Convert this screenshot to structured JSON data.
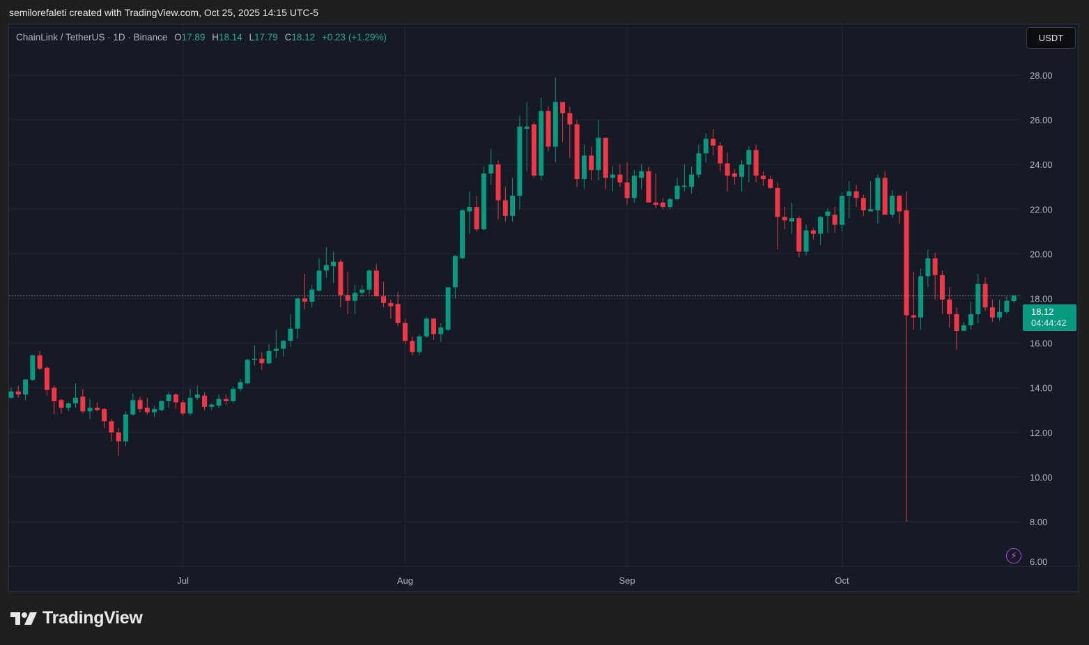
{
  "caption": "semilorefaleti created with TradingView.com, Oct 25, 2025 14:15 UTC-5",
  "legend": {
    "symbol": "ChainLink / TetherUS · 1D · Binance",
    "open_label": "O",
    "open": "17.89",
    "high_label": "H",
    "high": "18.14",
    "low_label": "L",
    "low": "17.79",
    "close_label": "C",
    "close": "18.12",
    "change": "+0.23 (+1.29%)"
  },
  "currency_button": "USDT",
  "last_price": {
    "price": "18.12",
    "countdown": "04:44:42"
  },
  "logo_text": "TradingView",
  "colors": {
    "up": "#089981",
    "down": "#f23645",
    "background": "#161a25",
    "grid": "#232632",
    "accent_bolt": "#b44ae0"
  },
  "chart_data": {
    "type": "candlestick",
    "title": "ChainLink / TetherUS · 1D · Binance",
    "ylabel": "USDT",
    "ylim": [
      6,
      29.2
    ],
    "yticks": [
      "28.00",
      "26.00",
      "24.00",
      "22.00",
      "20.00",
      "18.00",
      "16.00",
      "14.00",
      "12.00",
      "10.00",
      "8.00",
      "6.00"
    ],
    "ytick_values": [
      28,
      26,
      24,
      22,
      20,
      18,
      16,
      14,
      12,
      10,
      8,
      6
    ],
    "xticks": [
      {
        "label": "Jul",
        "index": 24
      },
      {
        "label": "Aug",
        "index": 55
      },
      {
        "label": "Sep",
        "index": 86
      },
      {
        "label": "Oct",
        "index": 116
      }
    ],
    "grid": true,
    "candle_fields": [
      "open",
      "high",
      "low",
      "close"
    ],
    "candles": [
      [
        13.55,
        14.0,
        13.5,
        13.83
      ],
      [
        13.83,
        14.1,
        13.55,
        13.7
      ],
      [
        13.7,
        14.4,
        13.45,
        14.37
      ],
      [
        14.35,
        15.5,
        14.3,
        15.45
      ],
      [
        15.45,
        15.65,
        14.8,
        14.85
      ],
      [
        14.9,
        14.95,
        13.65,
        13.9
      ],
      [
        14.0,
        14.1,
        12.8,
        13.4
      ],
      [
        13.45,
        13.5,
        12.85,
        13.1
      ],
      [
        13.1,
        13.35,
        12.95,
        13.3
      ],
      [
        13.3,
        14.2,
        13.1,
        13.55
      ],
      [
        13.6,
        13.95,
        12.85,
        12.95
      ],
      [
        12.95,
        13.5,
        12.6,
        13.1
      ],
      [
        13.1,
        13.35,
        12.95,
        13.0
      ],
      [
        13.05,
        13.1,
        12.2,
        12.5
      ],
      [
        12.5,
        12.6,
        11.6,
        12.0
      ],
      [
        12.0,
        12.2,
        10.95,
        11.6
      ],
      [
        11.6,
        12.95,
        11.4,
        12.8
      ],
      [
        12.8,
        13.75,
        12.75,
        13.45
      ],
      [
        13.45,
        13.6,
        12.9,
        13.05
      ],
      [
        13.1,
        13.55,
        12.8,
        12.9
      ],
      [
        12.9,
        13.2,
        12.7,
        13.05
      ],
      [
        13.0,
        13.45,
        12.95,
        13.4
      ],
      [
        13.4,
        13.8,
        13.1,
        13.7
      ],
      [
        13.7,
        13.75,
        13.05,
        13.35
      ],
      [
        13.35,
        13.45,
        12.75,
        12.85
      ],
      [
        12.85,
        13.95,
        12.75,
        13.55
      ],
      [
        13.55,
        14.1,
        13.45,
        13.7
      ],
      [
        13.65,
        13.8,
        13.0,
        13.15
      ],
      [
        13.15,
        13.3,
        13.0,
        13.25
      ],
      [
        13.2,
        13.7,
        13.1,
        13.5
      ],
      [
        13.5,
        13.7,
        13.25,
        13.4
      ],
      [
        13.4,
        14.05,
        13.3,
        13.95
      ],
      [
        13.95,
        14.4,
        13.85,
        14.25
      ],
      [
        14.2,
        15.3,
        14.15,
        15.25
      ],
      [
        15.25,
        15.9,
        15.0,
        15.3
      ],
      [
        15.3,
        15.6,
        14.8,
        15.1
      ],
      [
        15.1,
        15.95,
        15.05,
        15.65
      ],
      [
        15.65,
        16.6,
        15.35,
        15.75
      ],
      [
        15.75,
        16.15,
        15.4,
        16.1
      ],
      [
        16.1,
        17.3,
        15.85,
        16.65
      ],
      [
        16.65,
        18.05,
        16.2,
        18.0
      ],
      [
        18.0,
        19.1,
        17.5,
        17.85
      ],
      [
        17.85,
        18.6,
        17.6,
        18.4
      ],
      [
        18.35,
        19.8,
        18.3,
        19.25
      ],
      [
        19.25,
        20.3,
        18.95,
        19.5
      ],
      [
        19.45,
        20.1,
        18.7,
        19.65
      ],
      [
        19.65,
        19.75,
        17.6,
        18.15
      ],
      [
        18.15,
        19.2,
        17.3,
        17.9
      ],
      [
        17.9,
        18.6,
        17.3,
        18.25
      ],
      [
        18.25,
        18.6,
        18.1,
        18.4
      ],
      [
        18.4,
        19.3,
        18.2,
        19.25
      ],
      [
        19.25,
        19.55,
        18.1,
        18.1
      ],
      [
        18.1,
        18.75,
        17.6,
        17.8
      ],
      [
        17.8,
        17.95,
        17.1,
        17.65
      ],
      [
        17.75,
        18.3,
        16.75,
        16.9
      ],
      [
        16.9,
        17.1,
        15.95,
        16.1
      ],
      [
        16.1,
        16.3,
        15.45,
        15.6
      ],
      [
        15.6,
        16.4,
        15.45,
        16.3
      ],
      [
        16.3,
        17.2,
        16.25,
        17.1
      ],
      [
        17.1,
        17.1,
        16.15,
        16.4
      ],
      [
        16.4,
        16.9,
        16.05,
        16.7
      ],
      [
        16.6,
        18.5,
        16.55,
        18.5
      ],
      [
        18.5,
        19.95,
        18.0,
        19.9
      ],
      [
        19.8,
        22.0,
        19.75,
        21.95
      ],
      [
        21.9,
        22.8,
        20.9,
        22.1
      ],
      [
        22.1,
        22.6,
        21.0,
        21.1
      ],
      [
        21.1,
        23.9,
        21.05,
        23.6
      ],
      [
        23.6,
        24.7,
        23.1,
        24.0
      ],
      [
        24.0,
        24.2,
        21.55,
        22.4
      ],
      [
        22.4,
        23.0,
        21.45,
        21.7
      ],
      [
        21.7,
        23.4,
        21.45,
        22.6
      ],
      [
        22.6,
        26.2,
        22.0,
        25.7
      ],
      [
        25.6,
        26.8,
        23.7,
        25.7
      ],
      [
        25.8,
        25.9,
        23.4,
        23.5
      ],
      [
        23.5,
        27.0,
        23.3,
        26.4
      ],
      [
        26.4,
        26.6,
        24.6,
        24.8
      ],
      [
        24.8,
        27.9,
        24.1,
        26.8
      ],
      [
        26.8,
        26.8,
        25.0,
        26.3
      ],
      [
        26.3,
        26.6,
        24.3,
        25.8
      ],
      [
        25.8,
        26.0,
        23.0,
        23.35
      ],
      [
        23.35,
        24.9,
        22.9,
        24.4
      ],
      [
        24.4,
        24.8,
        23.3,
        23.75
      ],
      [
        23.75,
        26.0,
        23.3,
        25.2
      ],
      [
        25.2,
        25.2,
        22.9,
        23.4
      ],
      [
        23.4,
        23.9,
        22.8,
        23.55
      ],
      [
        23.55,
        24.0,
        23.0,
        23.2
      ],
      [
        23.2,
        24.1,
        22.2,
        22.5
      ],
      [
        22.5,
        23.75,
        22.3,
        23.5
      ],
      [
        23.4,
        24.0,
        22.9,
        23.7
      ],
      [
        23.7,
        23.9,
        22.3,
        22.3
      ],
      [
        22.3,
        23.6,
        22.05,
        22.2
      ],
      [
        22.3,
        22.5,
        22.0,
        22.1
      ],
      [
        22.1,
        22.5,
        22.0,
        22.45
      ],
      [
        22.45,
        23.4,
        22.4,
        23.05
      ],
      [
        23.0,
        24.0,
        22.8,
        23.05
      ],
      [
        23.0,
        23.9,
        22.7,
        23.55
      ],
      [
        23.55,
        24.9,
        23.4,
        24.5
      ],
      [
        24.5,
        25.4,
        24.1,
        25.15
      ],
      [
        25.15,
        25.6,
        24.4,
        24.85
      ],
      [
        24.85,
        25.0,
        23.7,
        24.05
      ],
      [
        24.05,
        24.55,
        22.8,
        23.5
      ],
      [
        23.6,
        23.8,
        23.1,
        23.45
      ],
      [
        23.45,
        24.2,
        22.8,
        24.0
      ],
      [
        24.0,
        24.8,
        23.2,
        24.65
      ],
      [
        24.65,
        24.9,
        23.2,
        23.5
      ],
      [
        23.5,
        23.7,
        23.05,
        23.35
      ],
      [
        23.35,
        23.5,
        22.9,
        22.95
      ],
      [
        22.95,
        23.2,
        20.2,
        21.65
      ],
      [
        21.65,
        22.1,
        21.1,
        21.5
      ],
      [
        21.45,
        22.3,
        20.9,
        21.6
      ],
      [
        21.6,
        21.7,
        19.85,
        20.1
      ],
      [
        20.1,
        21.3,
        19.95,
        21.05
      ],
      [
        21.05,
        21.15,
        20.65,
        20.9
      ],
      [
        20.9,
        21.7,
        20.4,
        21.65
      ],
      [
        21.7,
        22.05,
        20.95,
        21.9
      ],
      [
        21.75,
        22.1,
        20.95,
        21.3
      ],
      [
        21.3,
        22.75,
        21.0,
        22.6
      ],
      [
        22.6,
        23.25,
        21.6,
        22.8
      ],
      [
        22.8,
        23.1,
        22.1,
        22.5
      ],
      [
        22.5,
        22.65,
        21.7,
        21.95
      ],
      [
        21.9,
        23.25,
        21.9,
        22.0
      ],
      [
        21.95,
        23.55,
        21.35,
        23.4
      ],
      [
        23.4,
        23.7,
        21.75,
        21.75
      ],
      [
        21.75,
        22.85,
        21.6,
        22.6
      ],
      [
        22.6,
        22.65,
        21.35,
        21.9
      ],
      [
        21.95,
        22.8,
        8.0,
        17.25
      ],
      [
        17.25,
        19.2,
        16.6,
        17.15
      ],
      [
        17.15,
        19.35,
        16.6,
        19.0
      ],
      [
        19.0,
        20.2,
        18.5,
        19.8
      ],
      [
        19.8,
        20.05,
        17.95,
        19.05
      ],
      [
        19.05,
        19.25,
        17.3,
        17.95
      ],
      [
        17.95,
        18.5,
        16.7,
        17.3
      ],
      [
        17.3,
        17.6,
        15.7,
        16.55
      ],
      [
        16.55,
        16.95,
        16.55,
        16.8
      ],
      [
        16.8,
        17.85,
        16.6,
        17.3
      ],
      [
        17.3,
        19.1,
        16.9,
        18.65
      ],
      [
        18.65,
        18.95,
        17.45,
        17.6
      ],
      [
        17.6,
        17.95,
        16.95,
        17.15
      ],
      [
        17.15,
        17.95,
        17.0,
        17.4
      ],
      [
        17.4,
        18.1,
        17.3,
        17.9
      ],
      [
        17.89,
        18.14,
        17.79,
        18.12
      ]
    ]
  }
}
